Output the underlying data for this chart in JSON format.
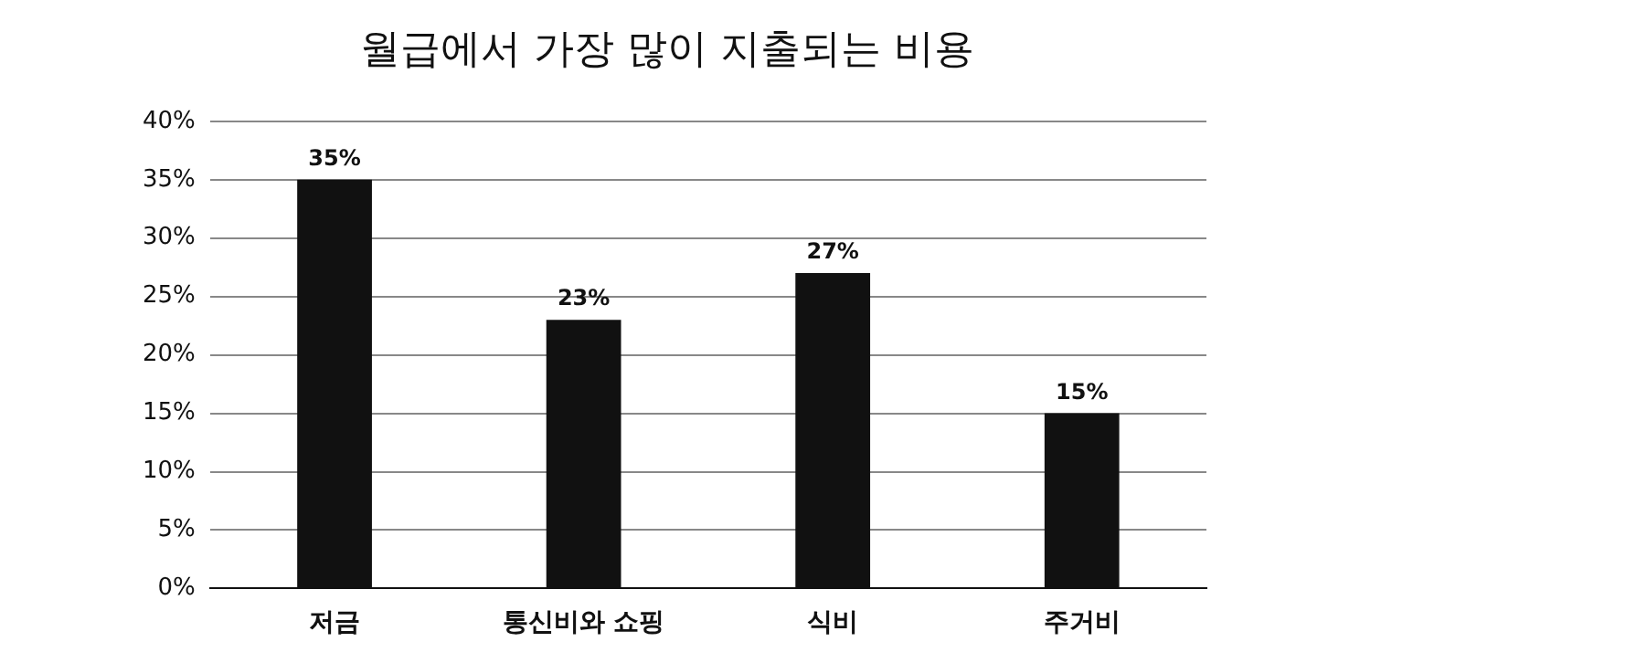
{
  "chart_data": {
    "type": "bar",
    "title": "월급에서 가장 많이 지출되는 비용",
    "categories": [
      "저금",
      "통신비와 쇼핑",
      "식비",
      "주거비"
    ],
    "values": [
      35,
      23,
      27,
      15
    ],
    "color": "#111111",
    "ylim": [
      0,
      40
    ],
    "yticks": [
      {
        "value": 0,
        "label": "0%"
      },
      {
        "value": 5,
        "label": "5%"
      },
      {
        "value": 10,
        "label": "10%"
      },
      {
        "value": 15,
        "label": "15%"
      },
      {
        "value": 20,
        "label": "20%"
      },
      {
        "value": 25,
        "label": "25%"
      },
      {
        "value": 30,
        "label": "30%"
      },
      {
        "value": 35,
        "label": "35%"
      },
      {
        "value": 40,
        "label": "40%"
      }
    ],
    "value_labels": [
      "35%",
      "23%",
      "27%",
      "15%"
    ],
    "grid": "y",
    "legend": false
  }
}
